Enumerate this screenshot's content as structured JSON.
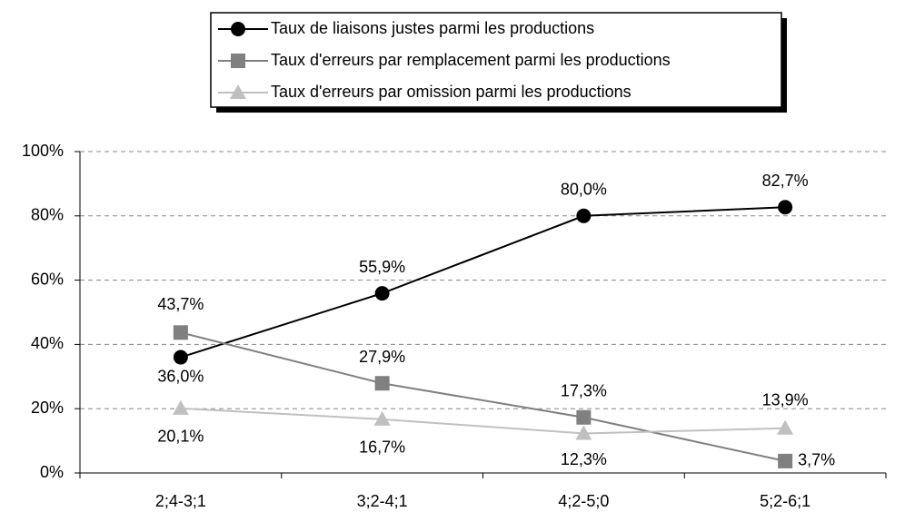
{
  "chart_data": {
    "type": "line",
    "categories": [
      "2;4-3;1",
      "3;2-4;1",
      "4;2-5;0",
      "5;2-6;1"
    ],
    "series": [
      {
        "name": "Taux de liaisons justes parmi les productions",
        "color": "#000000",
        "values": [
          36.0,
          55.9,
          80.0,
          82.7
        ],
        "value_labels": [
          "36,0%",
          "55,9%",
          "80,0%",
          "82,7%"
        ]
      },
      {
        "name": "Taux d'erreurs par remplacement parmi les productions",
        "color": "#808080",
        "values": [
          43.7,
          27.9,
          17.3,
          3.7
        ],
        "value_labels": [
          "43,7%",
          "27,9%",
          "17,3%",
          "3,7%"
        ]
      },
      {
        "name": "Taux d'erreurs par omission parmi les productions",
        "color": "#c0c0c0",
        "values": [
          20.1,
          16.7,
          12.3,
          13.9
        ],
        "value_labels": [
          "20,1%",
          "16,7%",
          "12,3%",
          "13,9%"
        ]
      }
    ],
    "ylim": [
      0,
      100
    ],
    "yticks": [
      {
        "value": 0,
        "label": "0%"
      },
      {
        "value": 20,
        "label": "20%"
      },
      {
        "value": 40,
        "label": "40%"
      },
      {
        "value": 60,
        "label": "60%"
      },
      {
        "value": 80,
        "label": "80%"
      },
      {
        "value": 100,
        "label": "100%"
      }
    ],
    "grid": true
  }
}
